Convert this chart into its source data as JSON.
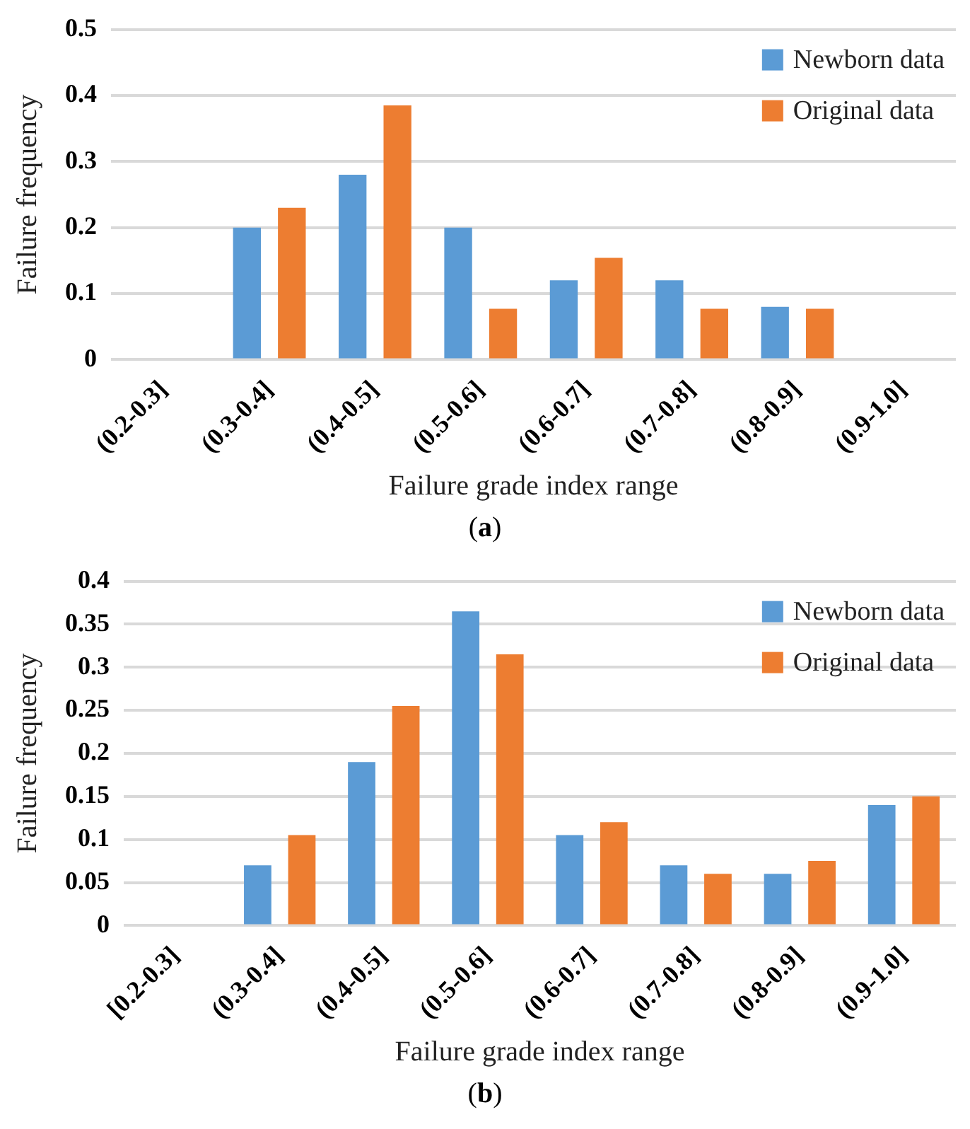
{
  "chart_data": [
    {
      "type": "bar",
      "xlabel": "Failure grade index range",
      "ylabel": "Failure frequency",
      "categories": [
        "(0.2-0.3]",
        "(0.3-0.4]",
        "(0.4-0.5]",
        "(0.5-0.6]",
        "(0.6-0.7]",
        "(0.7-0.8]",
        "(0.8-0.9]",
        "(0.9-1.0]"
      ],
      "series": [
        {
          "name": "Newborn data",
          "color": "#5b9bd5",
          "values": [
            0,
            0.2,
            0.28,
            0.2,
            0.12,
            0.12,
            0.08,
            0
          ]
        },
        {
          "name": "Original data",
          "color": "#ed7d31",
          "values": [
            0,
            0.23,
            0.385,
            0.077,
            0.154,
            0.077,
            0.077,
            0
          ]
        }
      ],
      "ylim": [
        0,
        0.5
      ],
      "yticks": [
        0,
        0.1,
        0.2,
        0.3,
        0.4,
        0.5
      ],
      "grid": "y",
      "legend": "top right",
      "annotations": [
        "(a)"
      ]
    },
    {
      "type": "bar",
      "xlabel": "Failure grade index range",
      "ylabel": "Failure frequency",
      "categories": [
        "[0.2-0.3]",
        "(0.3-0.4]",
        "(0.4-0.5]",
        "(0.5-0.6]",
        "(0.6-0.7]",
        "(0.7-0.8]",
        "(0.8-0.9]",
        "(0.9-1.0]"
      ],
      "series": [
        {
          "name": "Newborn data",
          "color": "#5b9bd5",
          "values": [
            0,
            0.07,
            0.19,
            0.365,
            0.105,
            0.07,
            0.06,
            0.14
          ]
        },
        {
          "name": "Original data",
          "color": "#ed7d31",
          "values": [
            0,
            0.105,
            0.255,
            0.315,
            0.12,
            0.06,
            0.075,
            0.15
          ]
        }
      ],
      "ylim": [
        0,
        0.4
      ],
      "yticks": [
        0,
        0.05,
        0.1,
        0.15,
        0.2,
        0.25,
        0.3,
        0.35,
        0.4
      ],
      "grid": "y",
      "legend": "top right",
      "annotations": [
        "(b)"
      ]
    }
  ]
}
